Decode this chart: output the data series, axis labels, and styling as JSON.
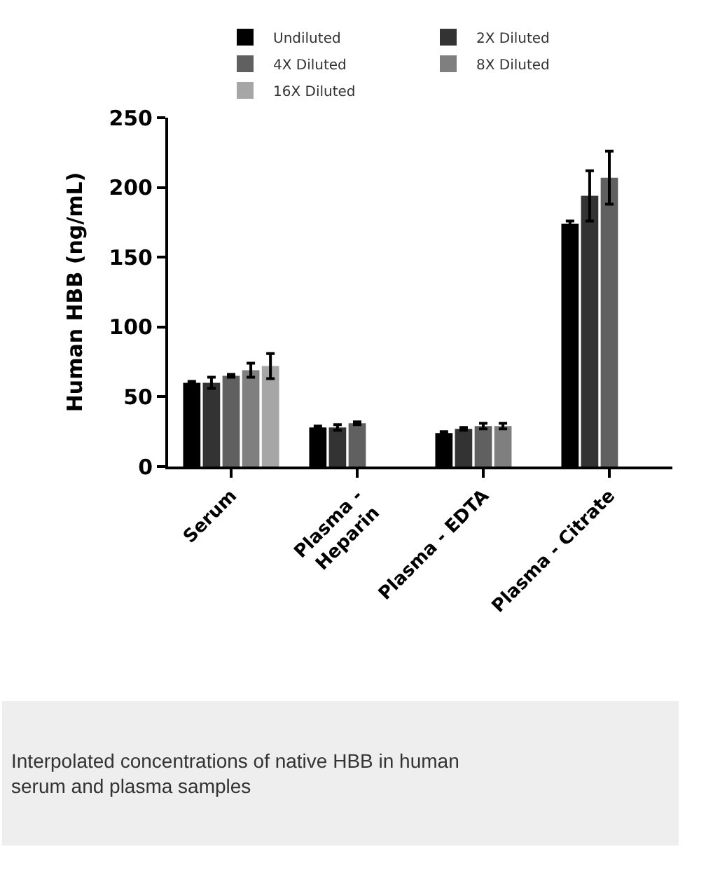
{
  "chart_data": {
    "type": "bar",
    "ylabel": "Human HBB (ng/mL)",
    "categories": [
      "Serum",
      "Plasma -\nHeparin",
      "Plasma - EDTA",
      "Plasma - Citrate"
    ],
    "series": [
      {
        "name": "Undiluted",
        "color": "#000000",
        "values": [
          60,
          28,
          24,
          174
        ],
        "errors": [
          1,
          1,
          1,
          2
        ]
      },
      {
        "name": "2X Diluted",
        "color": "#333333",
        "values": [
          60,
          28,
          27,
          194
        ],
        "errors": [
          4,
          2,
          1,
          18
        ]
      },
      {
        "name": "4X Diluted",
        "color": "#606060",
        "values": [
          65,
          31,
          29,
          207
        ],
        "errors": [
          1,
          1,
          2,
          19
        ]
      },
      {
        "name": "8X Diluted",
        "color": "#7f7f7f",
        "values": [
          69,
          null,
          29,
          null
        ],
        "errors": [
          5,
          null,
          2,
          null
        ]
      },
      {
        "name": "16X Diluted",
        "color": "#a6a6a6",
        "values": [
          72,
          null,
          null,
          null
        ],
        "errors": [
          9,
          null,
          null,
          null
        ]
      }
    ],
    "ylim": [
      0,
      250
    ],
    "yticks": [
      0,
      50,
      100,
      150,
      200,
      250
    ],
    "legend": "top",
    "annotations": [
      "Interpolated concentrations of native HBB in human\nserum and plasma samples"
    ]
  }
}
